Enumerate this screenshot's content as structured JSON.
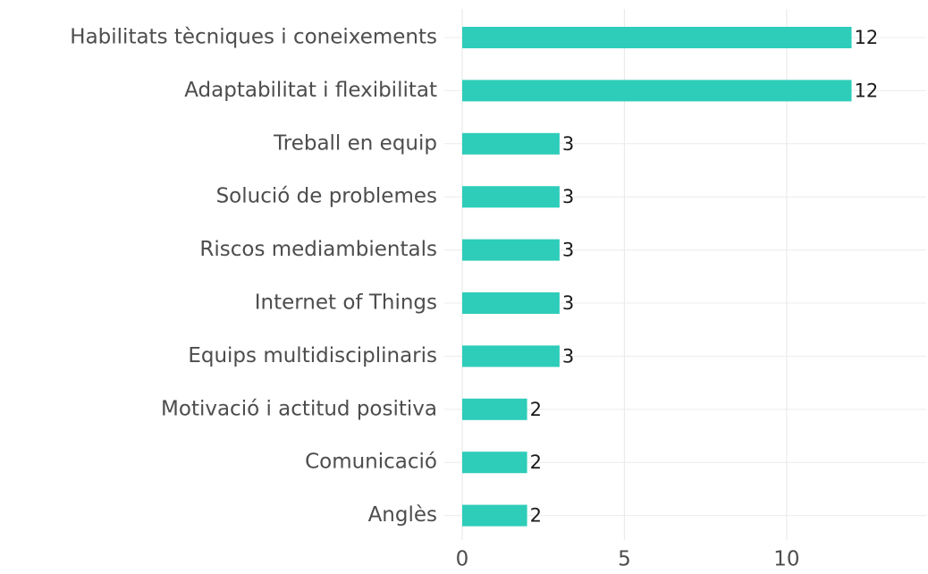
{
  "chart_data": {
    "type": "barh",
    "categories": [
      "Habilitats tècniques i coneixements",
      "Adaptabilitat i flexibilitat",
      "Treball en equip",
      "Solució de problemes",
      "Riscos mediambientals",
      "Internet of Things",
      "Equips multidisciplinaris",
      "Motivació i actitud positiva",
      "Comunicació",
      "Anglès"
    ],
    "values": [
      12,
      12,
      3,
      3,
      3,
      3,
      3,
      2,
      2,
      2
    ],
    "color": "#2ecdb9",
    "xlim": [
      0,
      14.3
    ],
    "xticks": [
      0,
      5,
      10
    ],
    "grid": true
  }
}
